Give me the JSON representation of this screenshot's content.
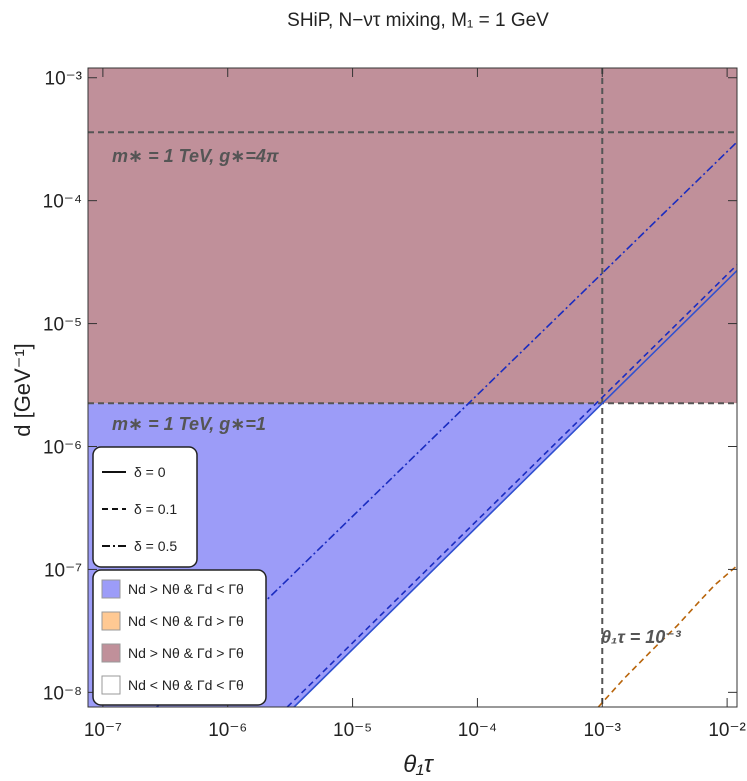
{
  "chart_data": {
    "type": "region",
    "title": "SHiP, N−ντ mixing, M₁ = 1 GeV",
    "x_label": "θ₁τ",
    "y_label": "d [GeV⁻¹]",
    "log_x": true,
    "log_y": true,
    "xlim": [
      7.6e-08,
      0.012
    ],
    "ylim": [
      7.6e-09,
      0.0012
    ],
    "xticks": [
      {
        "value": 1e-07,
        "label": "10⁻⁷"
      },
      {
        "value": 1e-06,
        "label": "10⁻⁶"
      },
      {
        "value": 1e-05,
        "label": "10⁻⁵"
      },
      {
        "value": 0.0001,
        "label": "10⁻⁴"
      },
      {
        "value": 0.001,
        "label": "10⁻³"
      },
      {
        "value": 0.01,
        "label": "10⁻²"
      }
    ],
    "yticks": [
      {
        "value": 1e-08,
        "label": "10⁻⁸"
      },
      {
        "value": 1e-07,
        "label": "10⁻⁷"
      },
      {
        "value": 1e-06,
        "label": "10⁻⁶"
      },
      {
        "value": 1e-05,
        "label": "10⁻⁵"
      },
      {
        "value": 0.0001,
        "label": "10⁻⁴"
      },
      {
        "value": 0.001,
        "label": "10⁻³"
      }
    ],
    "regions": [
      {
        "name": "Nd > Nθ & Γd < Γθ",
        "color": "#9c9cf8",
        "x": [
          7.6e-08,
          3.4e-06,
          0.001,
          7.6e-08
        ],
        "values": [
          7.6e-09,
          7.6e-09,
          2.25e-06,
          2.25e-06
        ]
      },
      {
        "name": "Nd < Nθ & Γd > Γθ",
        "color": "#ffc993",
        "x": [
          0.001,
          0.012,
          0.012
        ],
        "values": [
          2.25e-06,
          2.25e-06,
          2.7e-05
        ]
      },
      {
        "name": "Nd > Nθ & Γd > Γθ",
        "color": "#c0909a",
        "x": [
          7.6e-08,
          0.012,
          0.012,
          7.6e-08
        ],
        "values": [
          2.25e-06,
          2.25e-06,
          0.0012,
          0.0012
        ]
      },
      {
        "name": "Nd < Nθ & Γd < Γθ",
        "color": "#ffffff",
        "x": [
          0.001,
          0.012,
          0.012,
          3.4e-06
        ],
        "values": [
          2.25e-06,
          2.25e-06,
          7.6e-09,
          7.6e-09
        ]
      }
    ],
    "series": [
      {
        "name": "δ = 0",
        "style": "solid",
        "color": "#3050d0",
        "x": [
          3.4e-06,
          0.012
        ],
        "values": [
          7.6e-09,
          2.7e-05
        ]
      },
      {
        "name": "δ = 0.1",
        "style": "dashed",
        "color": "#1a2cc0",
        "x": [
          3e-06,
          0.012
        ],
        "values": [
          7.6e-09,
          3e-05
        ]
      },
      {
        "name": "δ = 0.5",
        "style": "dashdot",
        "color": "#1a2cc0",
        "x": [
          2.7e-07,
          0.012
        ],
        "values": [
          7.6e-09,
          0.0003
        ]
      },
      {
        "style": "dashed",
        "color": "#b8640a",
        "x": [
          0.00093,
          0.0015,
          0.0025,
          0.004,
          0.006,
          0.008,
          0.012
        ],
        "values": [
          7.6e-09,
          1.3e-08,
          2.2e-08,
          3.5e-08,
          5.5e-08,
          7.5e-08,
          1.07e-07
        ]
      }
    ],
    "hlines": [
      0.00036,
      2.25e-06
    ],
    "vlines": [
      0.001
    ],
    "ref_color": "#555555",
    "annotations": [
      "m∗ = 1 TeV, g∗=4π",
      "m∗ = 1 TeV, g∗=1",
      "θ₁τ = 10⁻³"
    ]
  }
}
